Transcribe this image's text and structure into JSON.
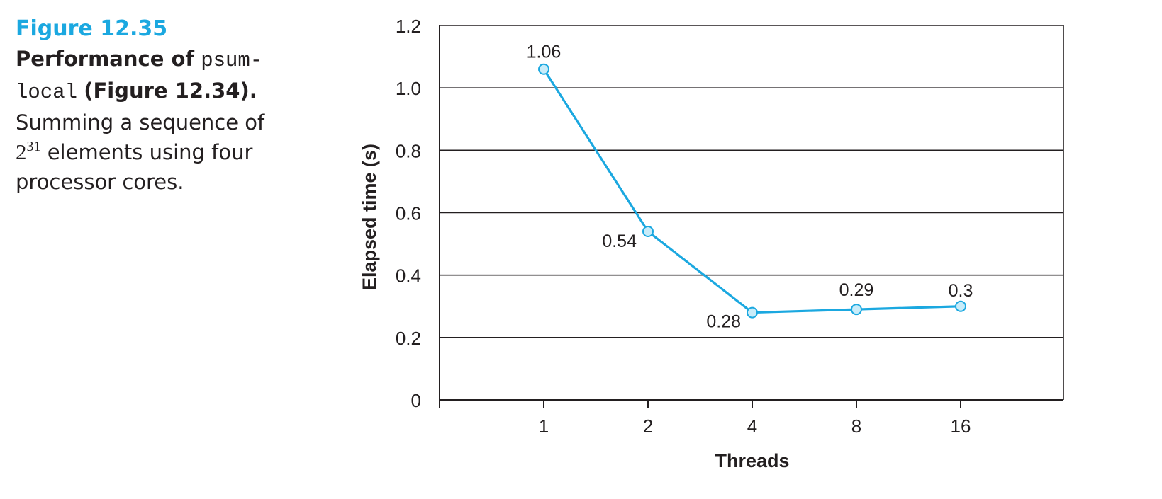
{
  "caption": {
    "figure_label": "Figure 12.35",
    "title_prefix": "Performance of",
    "code_part1": "psum-",
    "code_part2": "local",
    "title_ref": "(Figure 12.34).",
    "body_start": "Summing a sequence of",
    "base": "2",
    "exponent": "31",
    "body_end": "elements using four",
    "body_last": "processor cores."
  },
  "chart_data": {
    "type": "line",
    "categories": [
      "1",
      "2",
      "4",
      "8",
      "16"
    ],
    "series": [
      {
        "values": [
          1.06,
          0.54,
          0.28,
          0.29,
          0.3
        ],
        "data_labels": [
          "1.06",
          "0.54",
          "0.28",
          "0.29",
          "0.3"
        ]
      }
    ],
    "xlabel": "Threads",
    "ylabel": "Elapsed time (s)",
    "ylim": [
      0,
      1.2
    ],
    "yticks": [
      0,
      0.2,
      0.4,
      0.6,
      0.8,
      1.0,
      1.2
    ],
    "ytick_labels": [
      "0",
      "0.2",
      "0.4",
      "0.6",
      "0.8",
      "1.0",
      "1.2"
    ],
    "grid": true,
    "colors": {
      "line": "#1ba8e0",
      "marker_fill": "#c8ecf9",
      "axis": "#231f20"
    }
  }
}
